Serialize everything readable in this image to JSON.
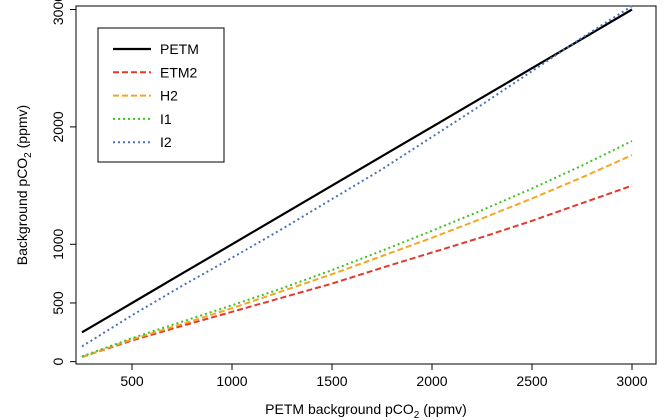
{
  "chart_data": {
    "type": "line",
    "xlabel": "PETM background pCO",
    "xlabel_sub": "2",
    "xlabel_tail": " (ppmv)",
    "ylabel": "Background pCO",
    "ylabel_sub": "2",
    "ylabel_tail": " (ppmv)",
    "xlim": [
      220,
      3120
    ],
    "ylim": [
      -20,
      3030
    ],
    "xticks": [
      500,
      1000,
      1500,
      2000,
      2500,
      3000
    ],
    "yticks": [
      0,
      500,
      1000,
      2000,
      3000
    ],
    "legend_position": "top-left",
    "grid": false,
    "x": [
      250,
      500,
      750,
      1000,
      1250,
      1500,
      1750,
      2000,
      2250,
      2500,
      2750,
      3000
    ],
    "series": [
      {
        "name": "PETM",
        "color": "#000000",
        "dash": "solid",
        "values": [
          250,
          500,
          750,
          1000,
          1250,
          1500,
          1750,
          2000,
          2250,
          2500,
          2750,
          3000
        ]
      },
      {
        "name": "ETM2",
        "color": "#e03a2f",
        "dash": "dashed",
        "values": [
          40,
          180,
          305,
          425,
          545,
          665,
          800,
          930,
          1060,
          1200,
          1350,
          1500
        ]
      },
      {
        "name": "H2",
        "color": "#f5a623",
        "dash": "dashed",
        "values": [
          40,
          190,
          320,
          455,
          600,
          745,
          900,
          1055,
          1220,
          1390,
          1570,
          1760
        ]
      },
      {
        "name": "I1",
        "color": "#3fc11f",
        "dash": "dotted",
        "values": [
          45,
          200,
          340,
          480,
          625,
          780,
          945,
          1115,
          1290,
          1475,
          1670,
          1880
        ]
      },
      {
        "name": "I2",
        "color": "#4a72b8",
        "dash": "dotted",
        "values": [
          130,
          395,
          645,
          885,
          1130,
          1385,
          1640,
          1915,
          2190,
          2475,
          2760,
          3030
        ]
      }
    ]
  }
}
